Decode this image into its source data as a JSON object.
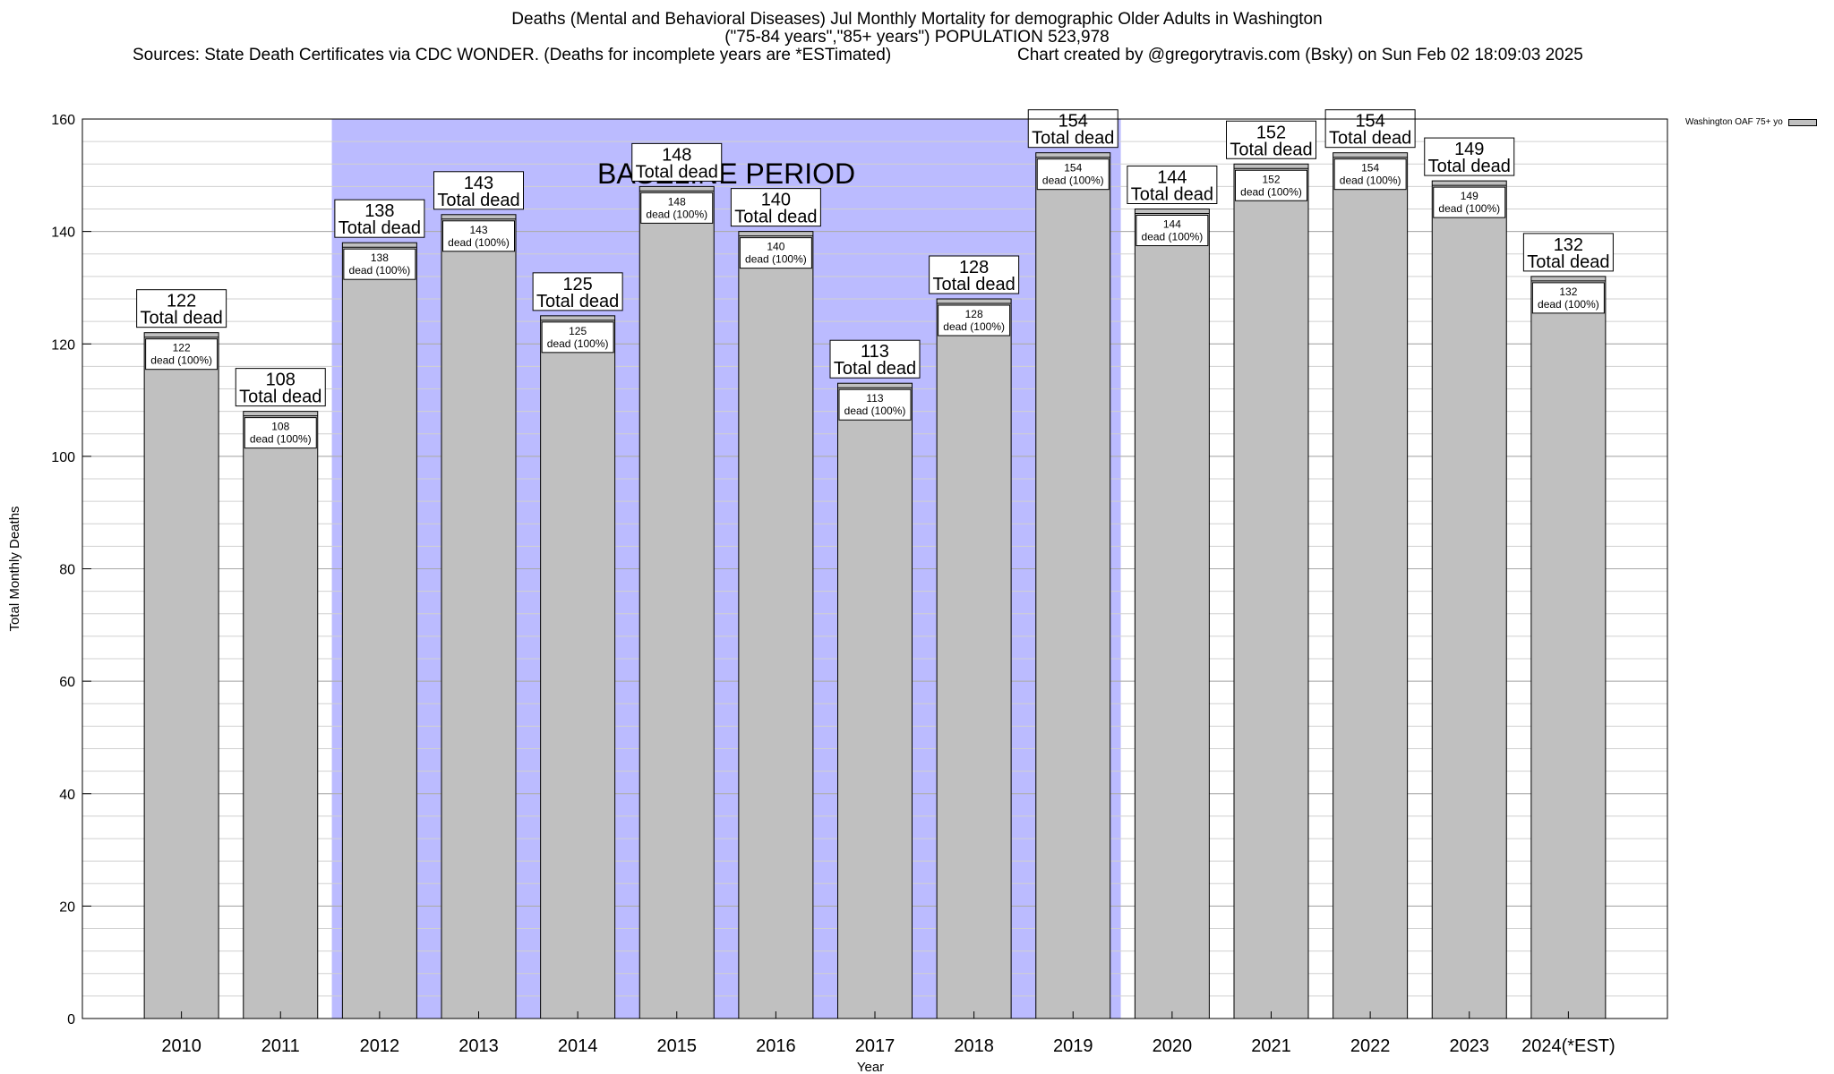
{
  "chart_data": {
    "type": "bar",
    "title_lines": [
      "Deaths (Mental and Behavioral Diseases) Jul Monthly Mortality for demographic Older Adults in Washington",
      "(\"75-84 years\",\"85+ years\") POPULATION 523,978"
    ],
    "sources_text": "Sources: State Death Certificates via CDC WONDER. (Deaths for incomplete years are *ESTimated)",
    "credit_text": "Chart created by @gregorytravis.com (Bsky) on Sun Feb 02 18:09:03 2025",
    "xlabel": "Year",
    "ylabel": "Total Monthly Deaths",
    "ylim": [
      0,
      160
    ],
    "y_ticks": [
      0,
      20,
      40,
      60,
      80,
      100,
      120,
      140,
      160
    ],
    "minor_grid_step": 4,
    "categories": [
      "2010",
      "2011",
      "2012",
      "2013",
      "2014",
      "2015",
      "2016",
      "2017",
      "2018",
      "2019",
      "2020",
      "2021",
      "2022",
      "2023",
      "2024(*EST)"
    ],
    "series": [
      {
        "name": "Washington OAF 75+ yo",
        "values": [
          122,
          108,
          138,
          143,
          125,
          148,
          140,
          113,
          128,
          154,
          144,
          152,
          154,
          149,
          132
        ],
        "color": "#c0c0c0"
      }
    ],
    "top_label_suffix": "Total dead",
    "inner_label_suffix": "dead (100%)",
    "baseline": {
      "label": "BASELINE PERIOD",
      "start": "2012",
      "end": "2019",
      "color": "#bbbbff"
    },
    "legend_position": "top-right",
    "grid": true
  }
}
